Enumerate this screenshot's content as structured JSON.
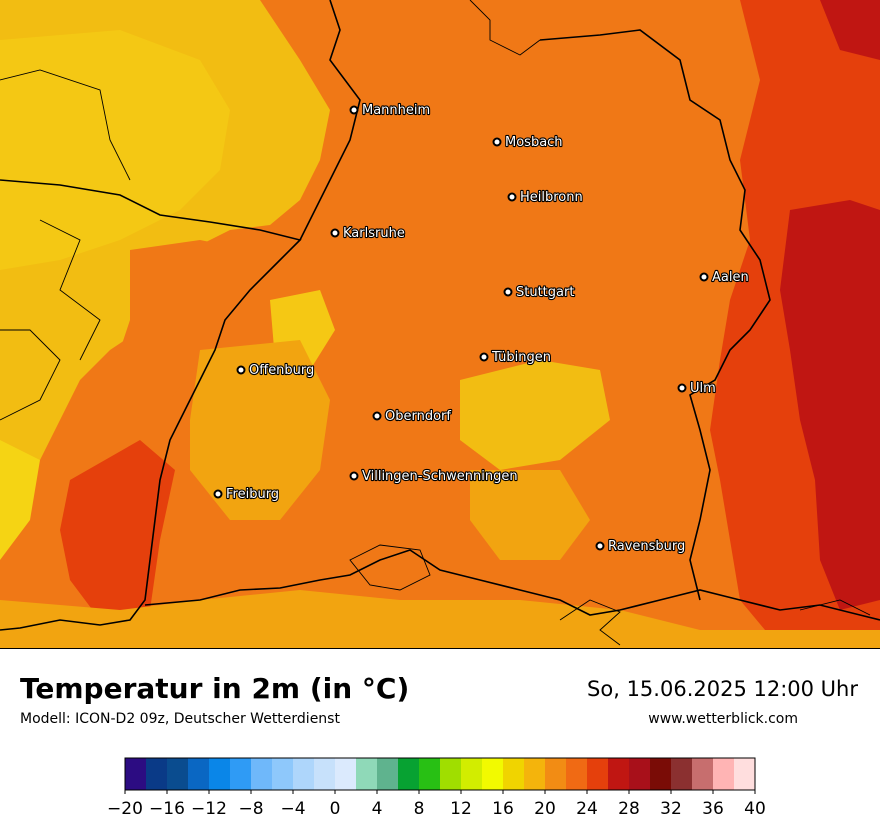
{
  "map": {
    "cities": [
      {
        "name": "Mannheim"
      },
      {
        "name": "Mosbach"
      },
      {
        "name": "Heilbronn"
      },
      {
        "name": "Karlsruhe"
      },
      {
        "name": "Aalen"
      },
      {
        "name": "Stuttgart"
      },
      {
        "name": "Tübingen"
      },
      {
        "name": "Offenburg"
      },
      {
        "name": "Ulm"
      },
      {
        "name": "Oberndorf"
      },
      {
        "name": "Villingen-Schwenningen"
      },
      {
        "name": "Freiburg"
      },
      {
        "name": "Ravensburg"
      }
    ]
  },
  "header": {
    "title": "Temperatur in 2m (in °C)",
    "subtitle": "Modell: ICON-D2 09z, Deutscher Wetterdienst",
    "datetime": "So, 15.06.2025 12:00 Uhr",
    "website": "www.wetterblick.com"
  },
  "legend": {
    "min": -20,
    "max": 40,
    "tick_labels": [
      "−20",
      "−16",
      "−12",
      "−8",
      "−4",
      "0",
      "4",
      "8",
      "12",
      "16",
      "20",
      "24",
      "28",
      "32",
      "36",
      "40"
    ],
    "colors": [
      "#2c0c82",
      "#0a3a87",
      "#0a4c8f",
      "#0a67c3",
      "#0a86e8",
      "#2f9bf5",
      "#6fb8fa",
      "#8ec8fb",
      "#aed6fb",
      "#c7e1fb",
      "#dbeafd",
      "#8fd9b8",
      "#5fb38e",
      "#07a232",
      "#28c014",
      "#a0de00",
      "#d2ed00",
      "#f2fa00",
      "#f0d400",
      "#f4b40c",
      "#f28c14",
      "#f06a14",
      "#e5400c",
      "#c01612",
      "#a8101a",
      "#7a0c06",
      "#8b3030",
      "#c76e6e",
      "#ffb4b4",
      "#ffdede"
    ]
  }
}
